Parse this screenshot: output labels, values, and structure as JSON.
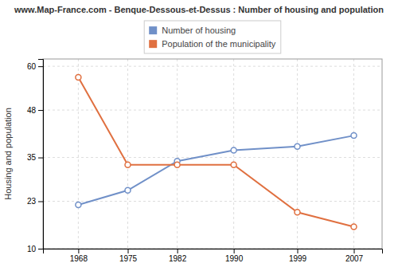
{
  "chart_data": {
    "type": "line",
    "title": "www.Map-France.com - Benque-Dessous-et-Dessus : Number of housing and population",
    "ylabel": "Housing and population",
    "x": [
      1968,
      1975,
      1982,
      1990,
      1999,
      2007
    ],
    "series": [
      {
        "name": "Number of housing",
        "color": "#7090c8",
        "values": [
          22,
          26,
          34,
          37,
          38,
          41
        ]
      },
      {
        "name": "Population of the municipality",
        "color": "#e07040",
        "values": [
          57,
          33,
          33,
          33,
          20,
          16
        ]
      }
    ],
    "xlim": [
      1963,
      2011
    ],
    "xticks": [
      1968,
      1975,
      1982,
      1990,
      1999,
      2007
    ],
    "ylim": [
      10,
      62
    ],
    "yticks": [
      10,
      23,
      35,
      48,
      60
    ],
    "grid": true,
    "legend": "top",
    "marker": "circle"
  }
}
